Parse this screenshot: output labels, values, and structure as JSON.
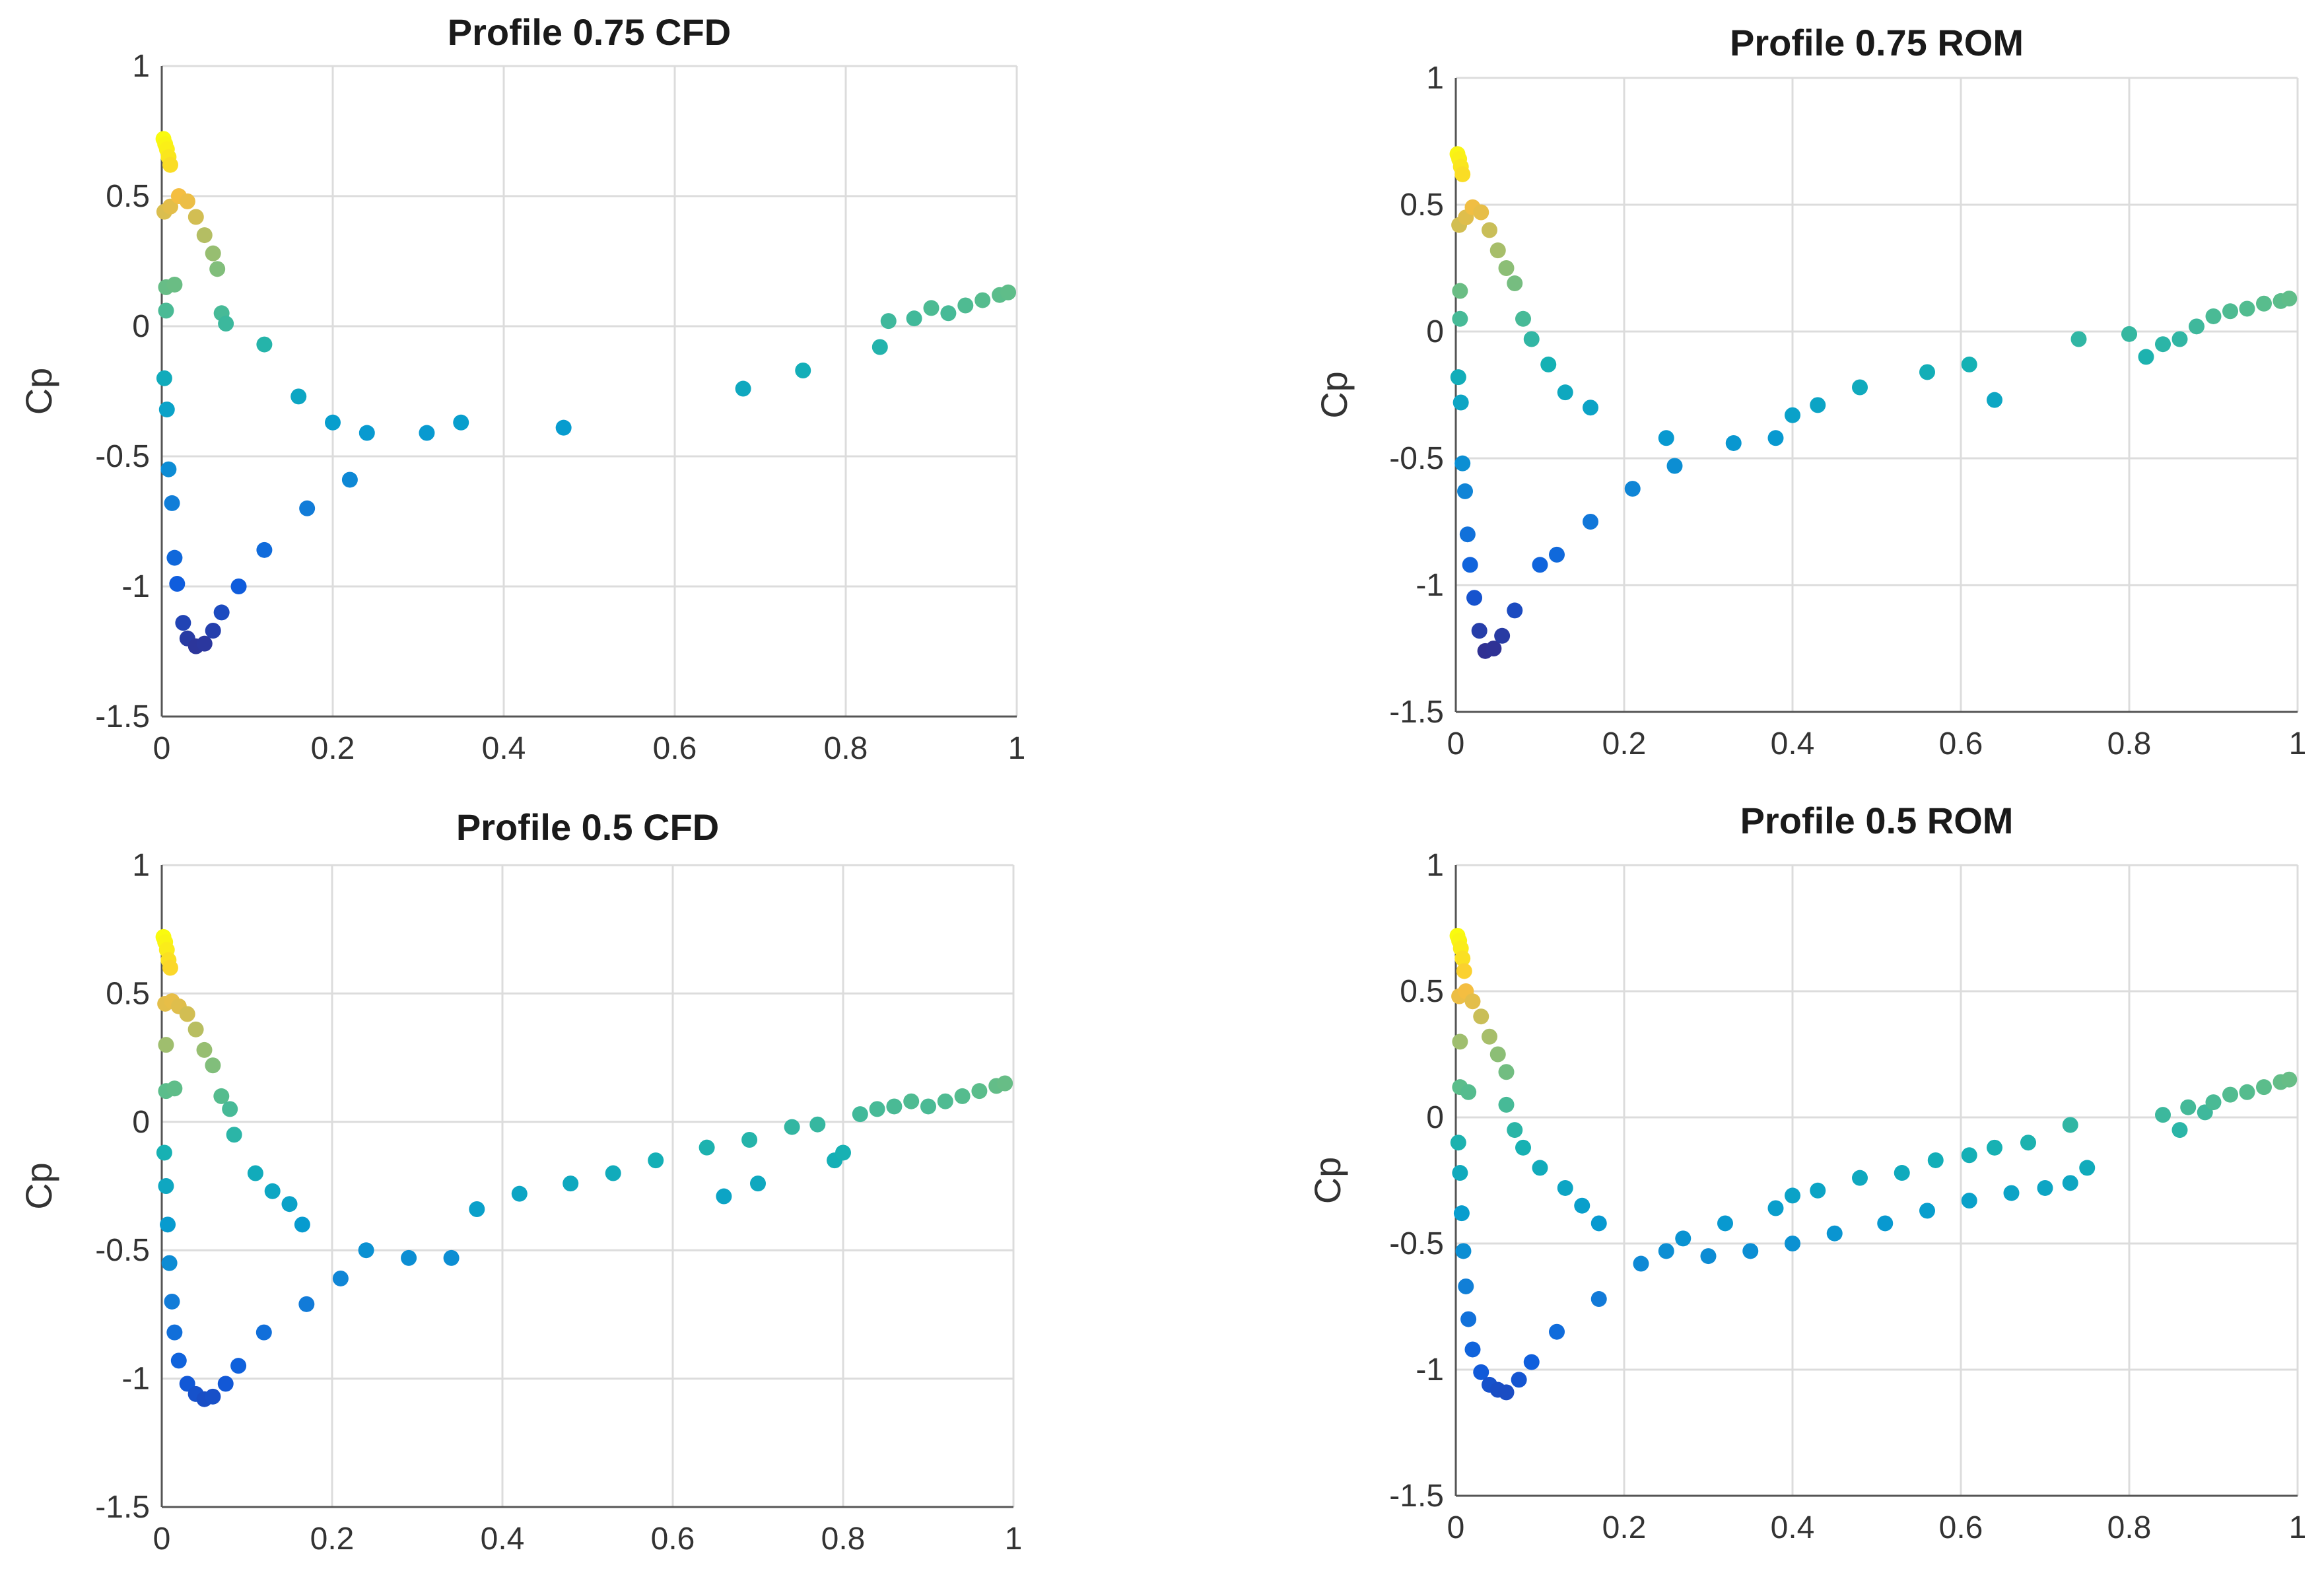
{
  "chart_data": [
    {
      "type": "scatter",
      "title": "Profile 0.75 CFD",
      "xlabel": "",
      "ylabel": "Cp",
      "xlim": [
        0,
        1
      ],
      "ylim": [
        -1.5,
        1
      ],
      "xticks": [
        0,
        0.2,
        0.4,
        0.6,
        0.8,
        1
      ],
      "xtick_labels": [
        "0",
        "0.2",
        "0.4",
        "0.6",
        "0.8",
        "1"
      ],
      "yticks": [
        -1.5,
        -1,
        -0.5,
        0,
        0.5,
        1
      ],
      "ytick_labels": [
        "-1.5",
        "-1",
        "-0.5",
        "0",
        "0.5",
        "1"
      ],
      "grid": true,
      "colormap": "parula (color follows Cp)",
      "points": [
        [
          0.002,
          0.72
        ],
        [
          0.004,
          0.7
        ],
        [
          0.006,
          0.68
        ],
        [
          0.008,
          0.65
        ],
        [
          0.01,
          0.62
        ],
        [
          0.003,
          0.44
        ],
        [
          0.01,
          0.46
        ],
        [
          0.02,
          0.5
        ],
        [
          0.03,
          0.48
        ],
        [
          0.04,
          0.42
        ],
        [
          0.05,
          0.35
        ],
        [
          0.06,
          0.28
        ],
        [
          0.065,
          0.22
        ],
        [
          0.005,
          0.15
        ],
        [
          0.015,
          0.16
        ],
        [
          0.005,
          0.06
        ],
        [
          0.07,
          0.05
        ],
        [
          0.075,
          0.01
        ],
        [
          0.12,
          -0.07
        ],
        [
          0.16,
          -0.27
        ],
        [
          0.2,
          -0.37
        ],
        [
          0.24,
          -0.41
        ],
        [
          0.31,
          -0.41
        ],
        [
          0.35,
          -0.37
        ],
        [
          0.47,
          -0.39
        ],
        [
          0.68,
          -0.24
        ],
        [
          0.75,
          -0.17
        ],
        [
          0.84,
          -0.08
        ],
        [
          0.85,
          0.02
        ],
        [
          0.88,
          0.03
        ],
        [
          0.9,
          0.07
        ],
        [
          0.92,
          0.05
        ],
        [
          0.94,
          0.08
        ],
        [
          0.96,
          0.1
        ],
        [
          0.98,
          0.12
        ],
        [
          0.99,
          0.13
        ],
        [
          0.003,
          -0.2
        ],
        [
          0.006,
          -0.32
        ],
        [
          0.008,
          -0.55
        ],
        [
          0.012,
          -0.68
        ],
        [
          0.015,
          -0.89
        ],
        [
          0.018,
          -0.99
        ],
        [
          0.025,
          -1.14
        ],
        [
          0.03,
          -1.2
        ],
        [
          0.04,
          -1.23
        ],
        [
          0.05,
          -1.22
        ],
        [
          0.06,
          -1.17
        ],
        [
          0.07,
          -1.1
        ],
        [
          0.09,
          -1.0
        ],
        [
          0.12,
          -0.86
        ],
        [
          0.17,
          -0.7
        ],
        [
          0.22,
          -0.59
        ]
      ]
    },
    {
      "type": "scatter",
      "title": "Profile 0.75 ROM",
      "xlabel": "",
      "ylabel": "Cp",
      "xlim": [
        0,
        1
      ],
      "ylim": [
        -1.5,
        1
      ],
      "xticks": [
        0,
        0.2,
        0.4,
        0.6,
        0.8,
        1
      ],
      "xtick_labels": [
        "0",
        "0.2",
        "0.4",
        "0.6",
        "0.8",
        "1"
      ],
      "yticks": [
        -1.5,
        -1,
        -0.5,
        0,
        0.5,
        1
      ],
      "ytick_labels": [
        "-1.5",
        "-1",
        "-0.5",
        "0",
        "0.5",
        "1"
      ],
      "grid": true,
      "colormap": "parula (color follows Cp)",
      "points": [
        [
          0.002,
          0.7
        ],
        [
          0.004,
          0.68
        ],
        [
          0.006,
          0.65
        ],
        [
          0.008,
          0.62
        ],
        [
          0.004,
          0.42
        ],
        [
          0.012,
          0.45
        ],
        [
          0.02,
          0.49
        ],
        [
          0.03,
          0.47
        ],
        [
          0.04,
          0.4
        ],
        [
          0.05,
          0.32
        ],
        [
          0.06,
          0.25
        ],
        [
          0.07,
          0.19
        ],
        [
          0.005,
          0.16
        ],
        [
          0.005,
          0.05
        ],
        [
          0.08,
          0.05
        ],
        [
          0.09,
          -0.03
        ],
        [
          0.11,
          -0.13
        ],
        [
          0.13,
          -0.24
        ],
        [
          0.16,
          -0.3
        ],
        [
          0.25,
          -0.42
        ],
        [
          0.26,
          -0.53
        ],
        [
          0.33,
          -0.44
        ],
        [
          0.38,
          -0.42
        ],
        [
          0.4,
          -0.33
        ],
        [
          0.43,
          -0.29
        ],
        [
          0.48,
          -0.22
        ],
        [
          0.56,
          -0.16
        ],
        [
          0.61,
          -0.13
        ],
        [
          0.64,
          -0.27
        ],
        [
          0.74,
          -0.03
        ],
        [
          0.8,
          -0.01
        ],
        [
          0.82,
          -0.1
        ],
        [
          0.84,
          -0.05
        ],
        [
          0.86,
          -0.03
        ],
        [
          0.88,
          0.02
        ],
        [
          0.9,
          0.06
        ],
        [
          0.92,
          0.08
        ],
        [
          0.94,
          0.09
        ],
        [
          0.96,
          0.11
        ],
        [
          0.98,
          0.12
        ],
        [
          0.99,
          0.13
        ],
        [
          0.003,
          -0.18
        ],
        [
          0.006,
          -0.28
        ],
        [
          0.008,
          -0.52
        ],
        [
          0.011,
          -0.63
        ],
        [
          0.014,
          -0.8
        ],
        [
          0.017,
          -0.92
        ],
        [
          0.022,
          -1.05
        ],
        [
          0.028,
          -1.18
        ],
        [
          0.035,
          -1.26
        ],
        [
          0.045,
          -1.25
        ],
        [
          0.055,
          -1.2
        ],
        [
          0.07,
          -1.1
        ],
        [
          0.1,
          -0.92
        ],
        [
          0.12,
          -0.88
        ],
        [
          0.16,
          -0.75
        ],
        [
          0.21,
          -0.62
        ]
      ]
    },
    {
      "type": "scatter",
      "title": "Profile 0.5 CFD",
      "xlabel": "",
      "ylabel": "Cp",
      "xlim": [
        0,
        1
      ],
      "ylim": [
        -1.5,
        1
      ],
      "xticks": [
        0,
        0.2,
        0.4,
        0.6,
        0.8,
        1
      ],
      "xtick_labels": [
        "0",
        "0.2",
        "0.4",
        "0.6",
        "0.8",
        "1"
      ],
      "yticks": [
        -1.5,
        -1,
        -0.5,
        0,
        0.5,
        1
      ],
      "ytick_labels": [
        "-1.5",
        "-1",
        "-0.5",
        "0",
        "0.5",
        "1"
      ],
      "grid": true,
      "colormap": "parula (color follows Cp)",
      "points": [
        [
          0.002,
          0.72
        ],
        [
          0.004,
          0.7
        ],
        [
          0.006,
          0.67
        ],
        [
          0.008,
          0.63
        ],
        [
          0.01,
          0.6
        ],
        [
          0.004,
          0.46
        ],
        [
          0.012,
          0.47
        ],
        [
          0.02,
          0.45
        ],
        [
          0.03,
          0.42
        ],
        [
          0.04,
          0.36
        ],
        [
          0.05,
          0.28
        ],
        [
          0.06,
          0.22
        ],
        [
          0.005,
          0.3
        ],
        [
          0.005,
          0.12
        ],
        [
          0.015,
          0.13
        ],
        [
          0.07,
          0.1
        ],
        [
          0.08,
          0.05
        ],
        [
          0.085,
          -0.05
        ],
        [
          0.11,
          -0.2
        ],
        [
          0.13,
          -0.27
        ],
        [
          0.15,
          -0.32
        ],
        [
          0.165,
          -0.4
        ],
        [
          0.24,
          -0.5
        ],
        [
          0.29,
          -0.53
        ],
        [
          0.34,
          -0.53
        ],
        [
          0.37,
          -0.34
        ],
        [
          0.42,
          -0.28
        ],
        [
          0.48,
          -0.24
        ],
        [
          0.53,
          -0.2
        ],
        [
          0.58,
          -0.15
        ],
        [
          0.64,
          -0.1
        ],
        [
          0.66,
          -0.29
        ],
        [
          0.69,
          -0.07
        ],
        [
          0.7,
          -0.24
        ],
        [
          0.74,
          -0.02
        ],
        [
          0.77,
          -0.01
        ],
        [
          0.79,
          -0.15
        ],
        [
          0.8,
          -0.12
        ],
        [
          0.82,
          0.03
        ],
        [
          0.84,
          0.05
        ],
        [
          0.86,
          0.06
        ],
        [
          0.88,
          0.08
        ],
        [
          0.9,
          0.06
        ],
        [
          0.92,
          0.08
        ],
        [
          0.94,
          0.1
        ],
        [
          0.96,
          0.12
        ],
        [
          0.98,
          0.14
        ],
        [
          0.99,
          0.15
        ],
        [
          0.003,
          -0.12
        ],
        [
          0.005,
          -0.25
        ],
        [
          0.007,
          -0.4
        ],
        [
          0.009,
          -0.55
        ],
        [
          0.012,
          -0.7
        ],
        [
          0.015,
          -0.82
        ],
        [
          0.02,
          -0.93
        ],
        [
          0.03,
          -1.02
        ],
        [
          0.04,
          -1.06
        ],
        [
          0.05,
          -1.08
        ],
        [
          0.06,
          -1.07
        ],
        [
          0.075,
          -1.02
        ],
        [
          0.09,
          -0.95
        ],
        [
          0.12,
          -0.82
        ],
        [
          0.17,
          -0.71
        ],
        [
          0.21,
          -0.61
        ]
      ]
    },
    {
      "type": "scatter",
      "title": "Profile 0.5 ROM",
      "xlabel": "",
      "ylabel": "Cp",
      "xlim": [
        0,
        1
      ],
      "ylim": [
        -1.5,
        1
      ],
      "xticks": [
        0,
        0.2,
        0.4,
        0.6,
        0.8,
        1
      ],
      "xtick_labels": [
        "0",
        "0.2",
        "0.4",
        "0.6",
        "0.8",
        "1"
      ],
      "yticks": [
        -1.5,
        -1,
        -0.5,
        0,
        0.5,
        1
      ],
      "ytick_labels": [
        "-1.5",
        "-1",
        "-0.5",
        "0",
        "0.5",
        "1"
      ],
      "grid": true,
      "colormap": "parula (color follows Cp)",
      "points": [
        [
          0.002,
          0.72
        ],
        [
          0.004,
          0.7
        ],
        [
          0.006,
          0.67
        ],
        [
          0.008,
          0.63
        ],
        [
          0.01,
          0.58
        ],
        [
          0.004,
          0.48
        ],
        [
          0.012,
          0.5
        ],
        [
          0.02,
          0.46
        ],
        [
          0.03,
          0.4
        ],
        [
          0.04,
          0.32
        ],
        [
          0.05,
          0.25
        ],
        [
          0.06,
          0.18
        ],
        [
          0.005,
          0.3
        ],
        [
          0.005,
          0.12
        ],
        [
          0.015,
          0.1
        ],
        [
          0.06,
          0.05
        ],
        [
          0.07,
          -0.05
        ],
        [
          0.08,
          -0.12
        ],
        [
          0.1,
          -0.2
        ],
        [
          0.13,
          -0.28
        ],
        [
          0.15,
          -0.35
        ],
        [
          0.17,
          -0.42
        ],
        [
          0.22,
          -0.58
        ],
        [
          0.25,
          -0.53
        ],
        [
          0.27,
          -0.48
        ],
        [
          0.3,
          -0.55
        ],
        [
          0.32,
          -0.42
        ],
        [
          0.35,
          -0.53
        ],
        [
          0.38,
          -0.36
        ],
        [
          0.4,
          -0.5
        ],
        [
          0.4,
          -0.31
        ],
        [
          0.43,
          -0.29
        ],
        [
          0.45,
          -0.46
        ],
        [
          0.48,
          -0.24
        ],
        [
          0.51,
          -0.42
        ],
        [
          0.53,
          -0.22
        ],
        [
          0.56,
          -0.37
        ],
        [
          0.57,
          -0.17
        ],
        [
          0.61,
          -0.15
        ],
        [
          0.61,
          -0.33
        ],
        [
          0.64,
          -0.12
        ],
        [
          0.66,
          -0.3
        ],
        [
          0.68,
          -0.1
        ],
        [
          0.7,
          -0.28
        ],
        [
          0.73,
          -0.03
        ],
        [
          0.73,
          -0.26
        ],
        [
          0.75,
          -0.2
        ],
        [
          0.84,
          0.01
        ],
        [
          0.86,
          -0.05
        ],
        [
          0.87,
          0.04
        ],
        [
          0.89,
          0.02
        ],
        [
          0.9,
          0.06
        ],
        [
          0.92,
          0.09
        ],
        [
          0.94,
          0.1
        ],
        [
          0.96,
          0.12
        ],
        [
          0.98,
          0.14
        ],
        [
          0.99,
          0.15
        ],
        [
          0.003,
          -0.1
        ],
        [
          0.005,
          -0.22
        ],
        [
          0.007,
          -0.38
        ],
        [
          0.009,
          -0.53
        ],
        [
          0.012,
          -0.67
        ],
        [
          0.015,
          -0.8
        ],
        [
          0.02,
          -0.92
        ],
        [
          0.03,
          -1.01
        ],
        [
          0.04,
          -1.06
        ],
        [
          0.05,
          -1.08
        ],
        [
          0.06,
          -1.09
        ],
        [
          0.075,
          -1.04
        ],
        [
          0.09,
          -0.97
        ],
        [
          0.12,
          -0.85
        ],
        [
          0.17,
          -0.72
        ]
      ]
    }
  ]
}
